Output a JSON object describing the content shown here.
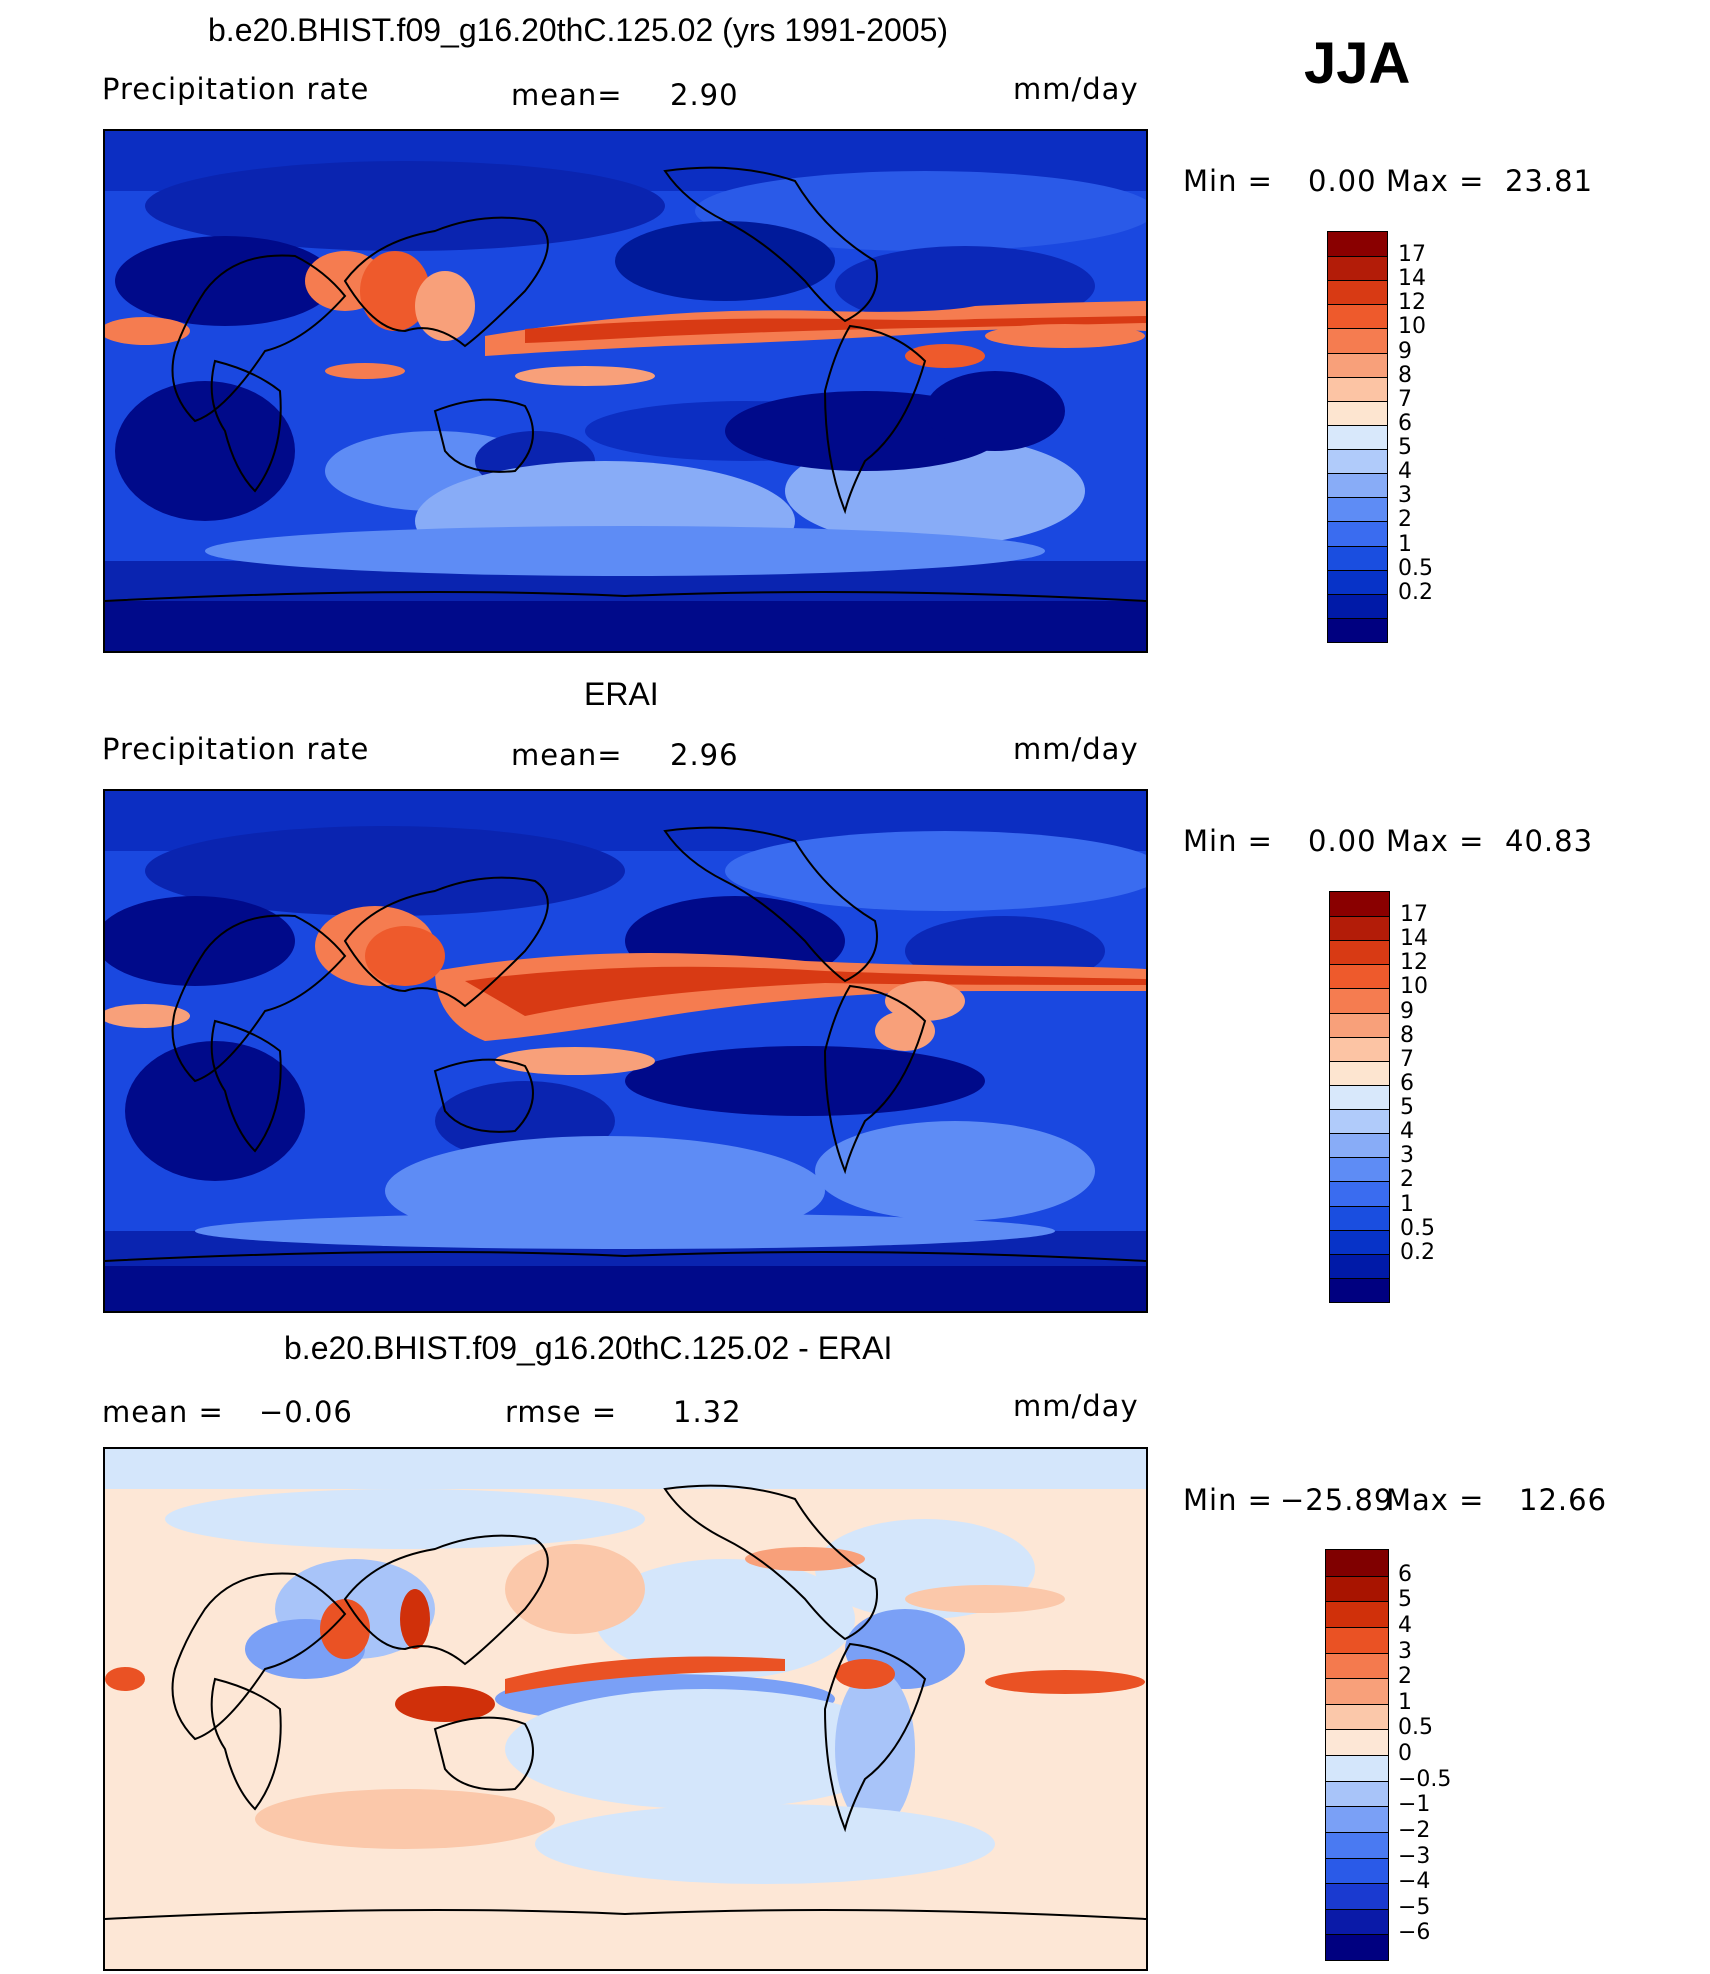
{
  "season": "JJA",
  "panels": [
    {
      "title": "b.e20.BHIST.f09_g16.20thC.125.02 (yrs 1991-2005)",
      "left_label": "Precipitation  rate",
      "mean_label": "mean=",
      "mean_value": "2.90",
      "units": "mm/day",
      "minmax": {
        "min_label": "Min  =",
        "min_value": "0.00",
        "max_label": "Max  =",
        "max_value": "23.81"
      },
      "colorbar_labels": [
        "17",
        "14",
        "12",
        "10",
        "9",
        "8",
        "7",
        "6",
        "5",
        "4",
        "3",
        "2",
        "1",
        "0.5",
        "0.2"
      ]
    },
    {
      "title": "ERAI",
      "left_label": "Precipitation  rate",
      "mean_label": "mean=",
      "mean_value": "2.96",
      "units": "mm/day",
      "minmax": {
        "min_label": "Min  =",
        "min_value": "0.00",
        "max_label": "Max  =",
        "max_value": "40.83"
      },
      "colorbar_labels": [
        "17",
        "14",
        "12",
        "10",
        "9",
        "8",
        "7",
        "6",
        "5",
        "4",
        "3",
        "2",
        "1",
        "0.5",
        "0.2"
      ]
    },
    {
      "title": "b.e20.BHIST.f09_g16.20thC.125.02 - ERAI",
      "mean_label": "mean  =",
      "mean_value": "−0.06",
      "rmse_label": "rmse  =",
      "rmse_value": "1.32",
      "units": "mm/day",
      "minmax": {
        "min_label": "Min  =",
        "min_value": "−25.89",
        "max_label": "Max  =",
        "max_value": "12.66"
      },
      "colorbar_labels": [
        "6",
        "5",
        "4",
        "3",
        "2",
        "1",
        "0.5",
        "0",
        "−0.5",
        "−1",
        "−2",
        "−3",
        "−4",
        "−5",
        "−6"
      ]
    }
  ],
  "colors": {
    "precip_scale": [
      "#000080",
      "#001aa8",
      "#0733c8",
      "#1a4ee0",
      "#3a6cf0",
      "#5e8cf5",
      "#88acf7",
      "#b0cbfa",
      "#d8e8fb",
      "#fde5d0",
      "#fcc4a4",
      "#f8a07a",
      "#f57c50",
      "#ee5a2c",
      "#d83a14",
      "#b31c08",
      "#8a0000"
    ],
    "diff_scale": [
      "#000080",
      "#0a1aa8",
      "#1a3ad0",
      "#2a5ae8",
      "#4a7af2",
      "#7aa0f6",
      "#a8c4f9",
      "#d4e6fb",
      "#fde7d6",
      "#fbc8aa",
      "#f8a07a",
      "#f47a4e",
      "#ea5224",
      "#d0300a",
      "#a81400",
      "#800000"
    ]
  }
}
